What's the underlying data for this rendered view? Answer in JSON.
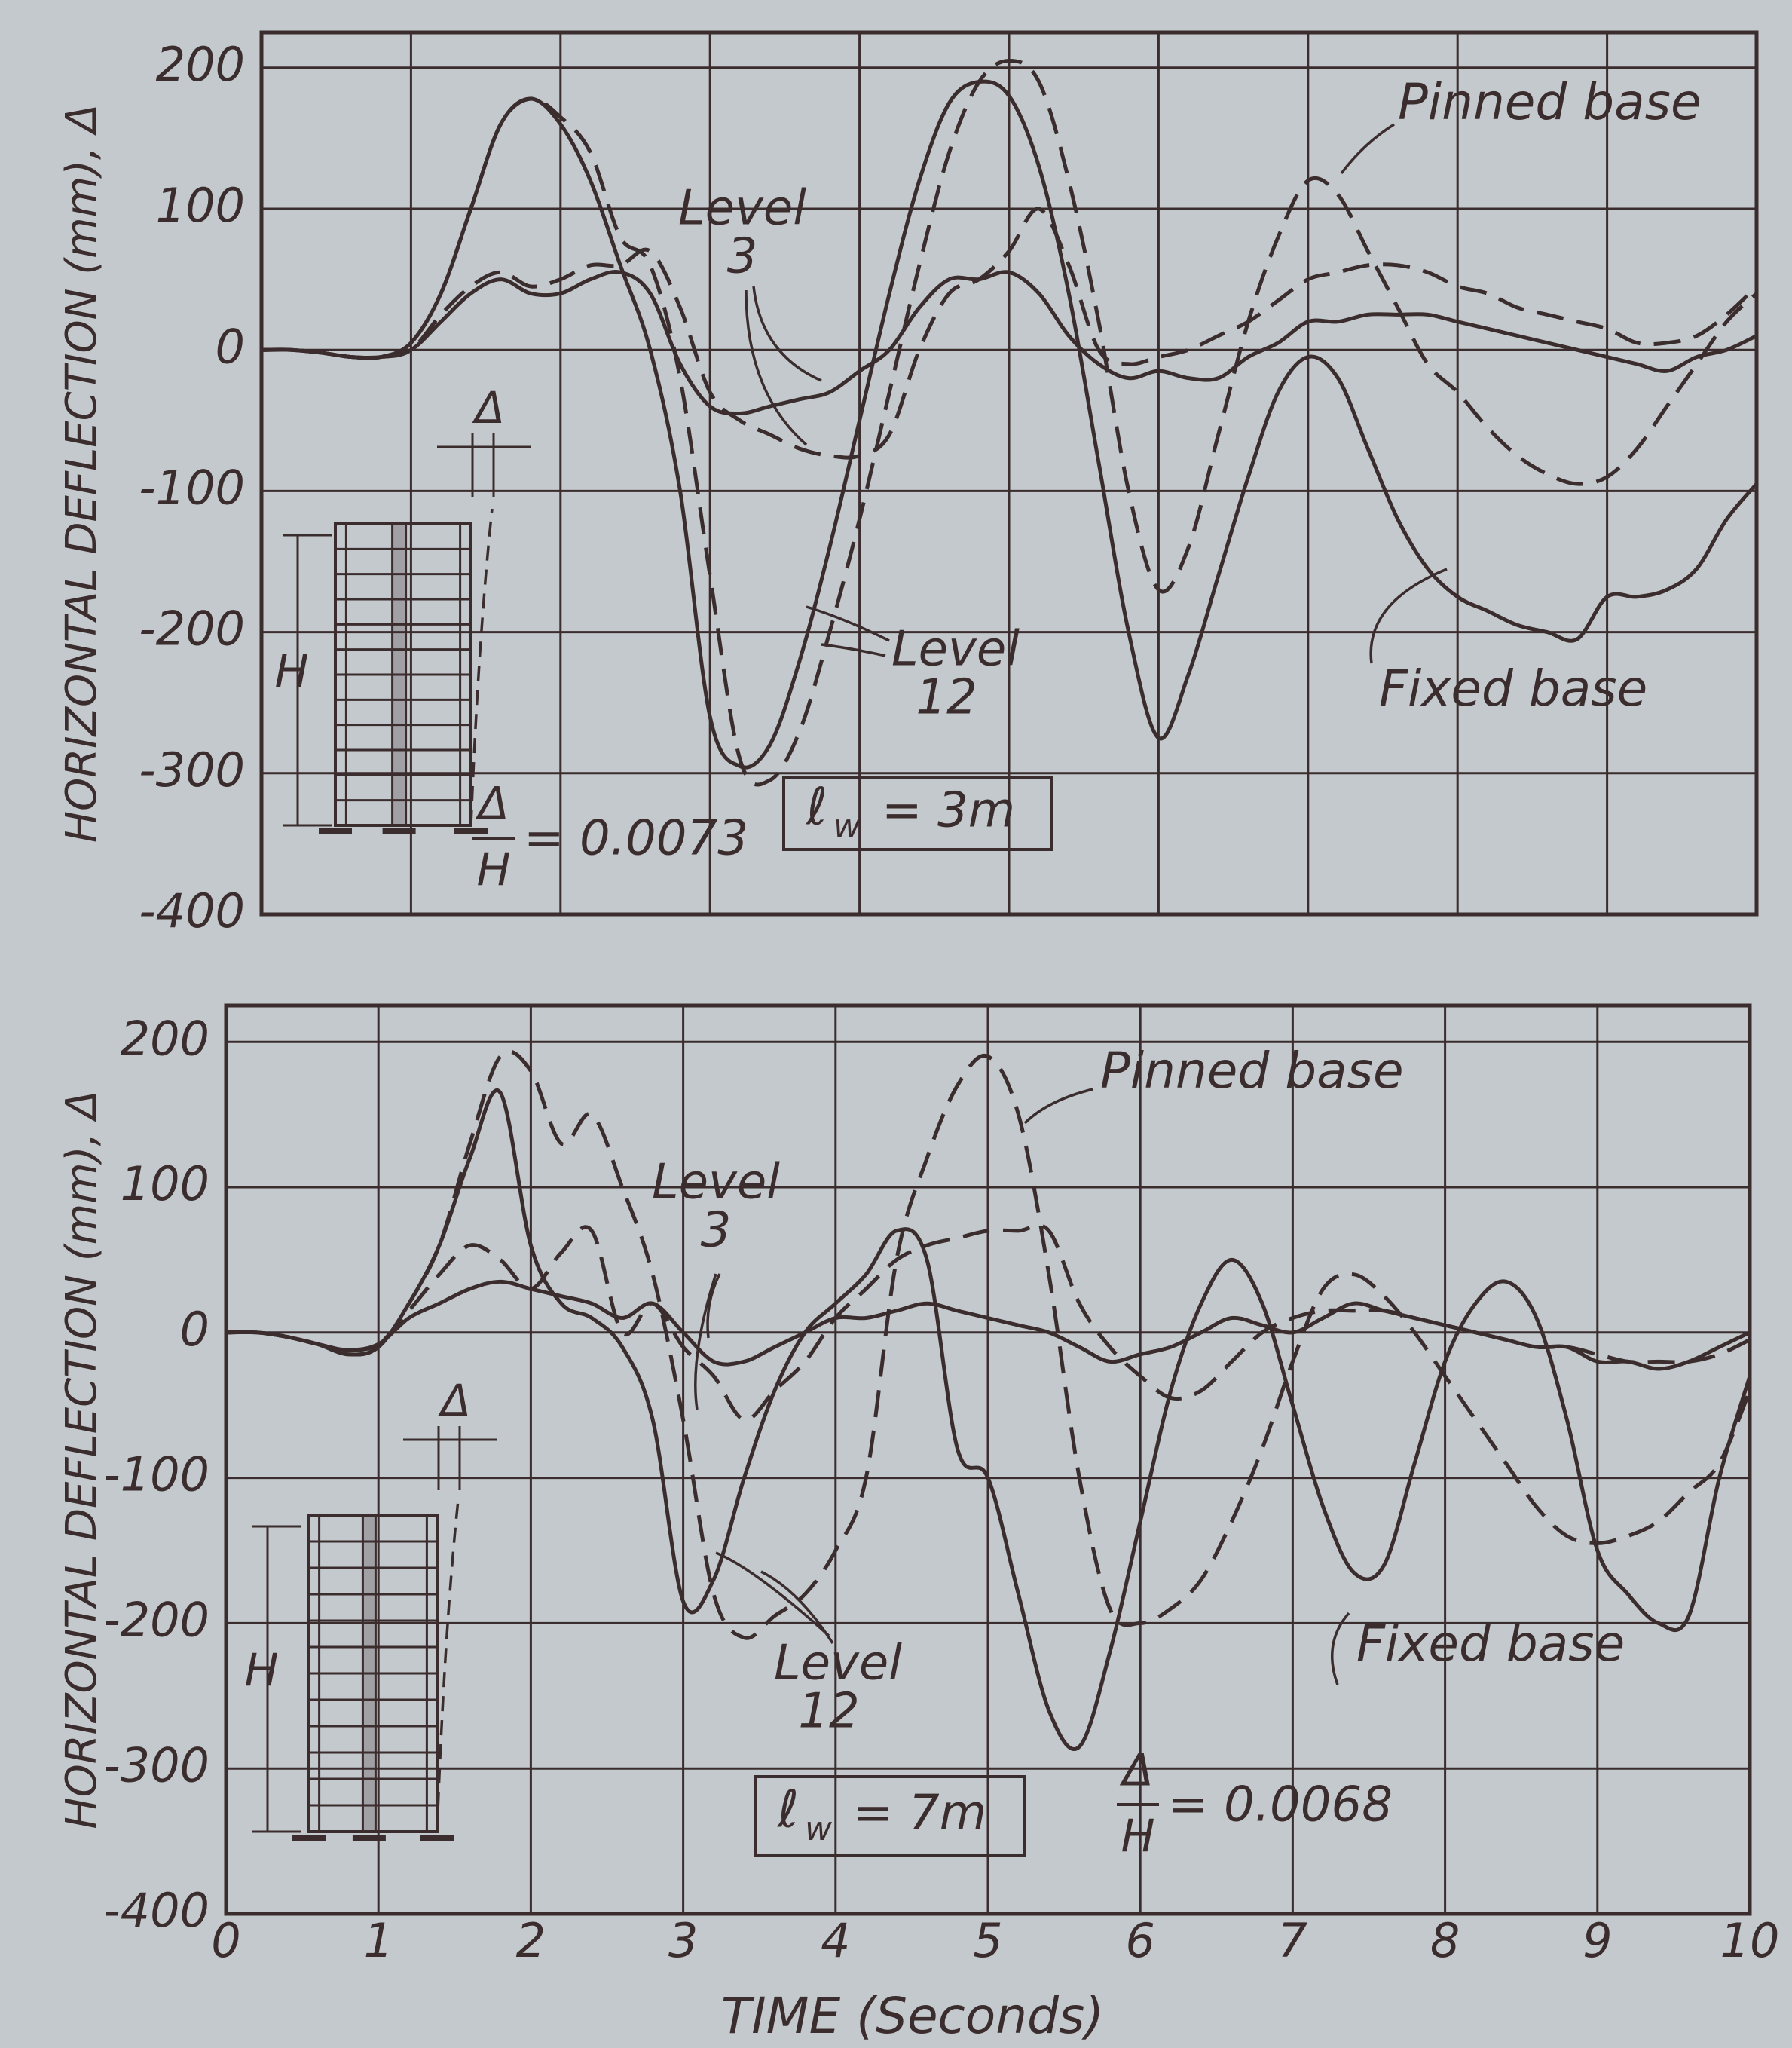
{
  "chart_data": [
    {
      "type": "line",
      "y_label": "HORIZONTAL DEFLECTION (mm), Δ",
      "x": [
        0,
        0.2,
        0.4,
        0.6,
        0.8,
        1,
        1.2,
        1.4,
        1.6,
        1.8,
        2,
        2.2,
        2.4,
        2.6,
        2.8,
        3,
        3.2,
        3.4,
        3.6,
        3.8,
        4,
        4.2,
        4.4,
        4.6,
        4.8,
        5,
        5.2,
        5.4,
        5.6,
        5.8,
        6,
        6.2,
        6.4,
        6.6,
        6.8,
        7,
        7.2,
        7.4,
        7.6,
        7.8,
        8,
        8.2,
        8.4,
        8.6,
        8.8,
        9,
        9.2,
        9.4,
        9.6,
        9.8,
        10
      ],
      "xlim": [
        0,
        10
      ],
      "xticks": [
        0,
        1,
        2,
        3,
        4,
        5,
        6,
        7,
        8,
        9,
        10
      ],
      "xtick_labels": false,
      "ylim": [
        -400,
        225
      ],
      "yticks": [
        200,
        100,
        0,
        -100,
        -200,
        -300,
        -400
      ],
      "grid": true,
      "series": [
        {
          "color": "#3b2d2e",
          "dash": false,
          "values": [
            0,
            0,
            -2,
            -5,
            -5,
            5,
            40,
            100,
            160,
            178,
            160,
            120,
            60,
            0,
            -100,
            -260,
            -295,
            -280,
            -220,
            -140,
            -50,
            40,
            120,
            175,
            190,
            180,
            130,
            40,
            -80,
            -200,
            -275,
            -230,
            -160,
            -90,
            -30,
            -5,
            -20,
            -70,
            -120,
            -155,
            -175,
            -185,
            -195,
            -200,
            -205,
            -175,
            -175,
            -170,
            -155,
            -120,
            -95
          ]
        },
        {
          "color": "#3b2d2e",
          "dash": true,
          "values": [
            0,
            0,
            -2,
            -5,
            -5,
            5,
            40,
            100,
            160,
            178,
            165,
            140,
            80,
            60,
            -20,
            -160,
            -290,
            -305,
            -270,
            -200,
            -120,
            -30,
            60,
            140,
            190,
            205,
            190,
            120,
            20,
            -100,
            -170,
            -140,
            -60,
            20,
            80,
            120,
            110,
            70,
            30,
            -10,
            -30,
            -55,
            -75,
            -88,
            -95,
            -90,
            -70,
            -40,
            -10,
            20,
            40
          ]
        },
        {
          "color": "#3b2d2e",
          "dash": false,
          "values": [
            0,
            0,
            -2,
            -5,
            -5,
            0,
            20,
            40,
            50,
            40,
            40,
            50,
            55,
            40,
            -10,
            -40,
            -45,
            -40,
            -35,
            -30,
            -15,
            0,
            30,
            50,
            50,
            55,
            40,
            10,
            -10,
            -20,
            -15,
            -20,
            -20,
            -5,
            5,
            20,
            20,
            25,
            25,
            25,
            20,
            15,
            10,
            5,
            0,
            -5,
            -10,
            -15,
            -5,
            0,
            10
          ]
        },
        {
          "color": "#3b2d2e",
          "dash": true,
          "values": [
            0,
            0,
            -2,
            -5,
            -5,
            0,
            25,
            45,
            55,
            45,
            50,
            60,
            60,
            70,
            30,
            -30,
            -50,
            -60,
            -70,
            -75,
            -75,
            -60,
            0,
            40,
            50,
            70,
            100,
            60,
            0,
            -10,
            -5,
            0,
            10,
            20,
            35,
            50,
            55,
            60,
            60,
            55,
            45,
            40,
            30,
            25,
            20,
            15,
            5,
            5,
            10,
            25,
            45
          ]
        }
      ],
      "annotations": {
        "pinned": "Pinned base",
        "fixed": "Fixed base",
        "level3": [
          "Level",
          "3"
        ],
        "level12": [
          "Level",
          "12"
        ]
      },
      "ratio": {
        "numerator": "Δ",
        "denominator": "H",
        "value": "= 0.0073"
      },
      "wall_length": {
        "symbol": "ℓ",
        "subscript": "w",
        "value": "= 3m"
      },
      "diagram": {
        "height_label": "H",
        "drift_label": "Δ"
      }
    },
    {
      "type": "line",
      "y_label": "HORIZONTAL DEFLECTION (mm), Δ",
      "x_label": "TIME (Seconds)",
      "x": [
        0,
        0.2,
        0.4,
        0.6,
        0.8,
        1,
        1.2,
        1.4,
        1.6,
        1.8,
        2,
        2.2,
        2.4,
        2.6,
        2.8,
        3,
        3.2,
        3.4,
        3.6,
        3.8,
        4,
        4.2,
        4.4,
        4.6,
        4.8,
        5,
        5.2,
        5.4,
        5.6,
        5.8,
        6,
        6.2,
        6.4,
        6.6,
        6.8,
        7,
        7.2,
        7.4,
        7.6,
        7.8,
        8,
        8.2,
        8.4,
        8.6,
        8.8,
        9,
        9.2,
        9.4,
        9.6,
        9.8,
        10
      ],
      "xlim": [
        0,
        10
      ],
      "xticks": [
        0,
        1,
        2,
        3,
        4,
        5,
        6,
        7,
        8,
        9,
        10
      ],
      "xtick_labels": true,
      "ylim": [
        -400,
        225
      ],
      "yticks": [
        200,
        100,
        0,
        -100,
        -200,
        -300,
        -400
      ],
      "grid": true,
      "series": [
        {
          "color": "#3b2d2e",
          "dash": false,
          "values": [
            0,
            0,
            -3,
            -8,
            -15,
            -10,
            20,
            60,
            120,
            165,
            60,
            20,
            10,
            -10,
            -60,
            -185,
            -170,
            -100,
            -40,
            0,
            20,
            40,
            70,
            50,
            -80,
            -100,
            -180,
            -260,
            -285,
            -220,
            -130,
            -40,
            20,
            50,
            20,
            -50,
            -120,
            -165,
            -160,
            -90,
            -20,
            20,
            35,
            10,
            -60,
            -150,
            -180,
            -200,
            -195,
            -100,
            -30
          ]
        },
        {
          "color": "#3b2d2e",
          "dash": true,
          "values": [
            0,
            0,
            -3,
            -8,
            -15,
            -10,
            20,
            60,
            130,
            190,
            180,
            130,
            150,
            100,
            40,
            -60,
            -180,
            -210,
            -195,
            -180,
            -150,
            -100,
            50,
            120,
            170,
            190,
            150,
            40,
            -100,
            -190,
            -200,
            -190,
            -170,
            -130,
            -80,
            -20,
            30,
            40,
            25,
            0,
            -30,
            -60,
            -90,
            -120,
            -140,
            -145,
            -140,
            -130,
            -110,
            -90,
            -40
          ]
        },
        {
          "color": "#3b2d2e",
          "dash": false,
          "values": [
            0,
            0,
            -3,
            -8,
            -12,
            -8,
            10,
            20,
            30,
            35,
            30,
            25,
            20,
            10,
            20,
            0,
            -20,
            -20,
            -10,
            0,
            10,
            10,
            15,
            20,
            15,
            10,
            5,
            0,
            -10,
            -20,
            -15,
            -10,
            0,
            10,
            5,
            0,
            10,
            20,
            15,
            10,
            5,
            0,
            -5,
            -10,
            -10,
            -20,
            -20,
            -25,
            -20,
            -10,
            0
          ]
        },
        {
          "color": "#3b2d2e",
          "dash": true,
          "values": [
            0,
            0,
            -3,
            -8,
            -12,
            -8,
            15,
            40,
            60,
            50,
            30,
            55,
            70,
            0,
            20,
            -10,
            -30,
            -60,
            -40,
            -20,
            10,
            30,
            50,
            60,
            65,
            70,
            70,
            70,
            20,
            -10,
            -30,
            -45,
            -40,
            -20,
            0,
            10,
            15,
            15,
            15,
            10,
            5,
            0,
            -5,
            -10,
            -10,
            -15,
            -20,
            -20,
            -20,
            -15,
            -5
          ]
        }
      ],
      "annotations": {
        "pinned": "Pinned base",
        "fixed": "Fixed base",
        "level3": [
          "Level",
          "3"
        ],
        "level12": [
          "Level",
          "12"
        ]
      },
      "ratio": {
        "numerator": "Δ",
        "denominator": "H",
        "value": "= 0.0068"
      },
      "wall_length": {
        "symbol": "ℓ",
        "subscript": "w",
        "value": "= 7m"
      },
      "diagram": {
        "height_label": "H",
        "drift_label": "Δ"
      }
    }
  ]
}
